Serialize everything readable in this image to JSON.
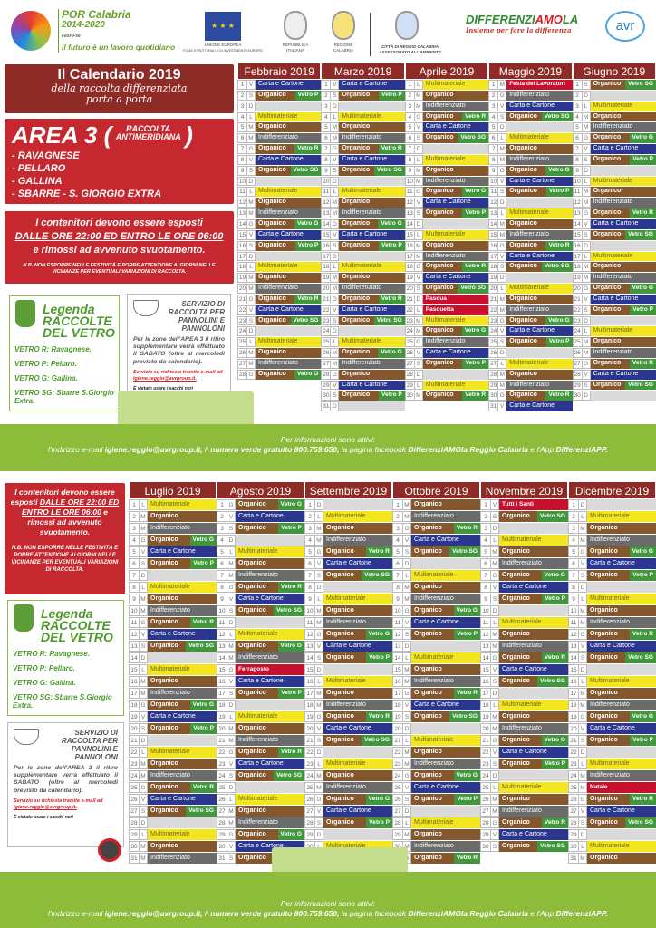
{
  "header": {
    "por_title": "POR Calabria",
    "por_years": "2014-2020",
    "por_fund": "Fesr-Fse",
    "por_motto": "il futuro è un lavoro quotidiano",
    "eu_label": "UNIONE EUROPEA",
    "eu_sub": "FONDI STRUTTURALI E DI INVESTIMENTO EUROPEI",
    "rep_label": "REPUBBLICA ITALIANA",
    "reg_label": "REGIONE CALABRIA",
    "city_label": "CITTÀ DI REGGIO CALABRIA",
    "city_sub": "ASSESSORATO ALL'AMBIENTE",
    "diff_a": "DIFFERENZI",
    "diff_b": "AMO",
    "diff_c": "LA",
    "diff_sub": "Insieme per fare la differenza",
    "avr": "avr"
  },
  "intro": {
    "title": "Il Calendario 2019",
    "subtitle1": "della raccolta differenziata",
    "subtitle2": "porta a porta"
  },
  "area": {
    "name": "AREA 3 (",
    "type1": "RACCOLTA",
    "type2": "ANTIMERIDIANA",
    "close": ")",
    "zones": [
      "- RAVAGNESE",
      "- PELLARO",
      "- GALLINA",
      "- SBARRE - S. GIORGIO EXTRA"
    ]
  },
  "notice": {
    "l1": "I contenitori devono essere esposti",
    "l2": "DALLE ORE 22:00 ED ENTRO LE ORE 06:00",
    "l3": "e rimossi ad avvenuto svuotamento.",
    "nb": "N.B. NON ESPORRE NELLE FESTIVITÀ E PORRE ATTENZIONE AI GIORNI NELLE VICINANZE PER EVENTUALI VARIAZIONI DI RACCOLTA."
  },
  "legend": {
    "h1": "Legenda",
    "h2": "RACCOLTE",
    "h3": "DEL VETRO",
    "items": [
      "VETRO R: Ravagnese.",
      "VETRO P: Pellaro.",
      "VETRO G: Gallina.",
      "VETRO SG: Sbarre S.Giorgio Extra."
    ]
  },
  "pannolini": {
    "title": "SERVIZIO DI RACCOLTA PER PANNOLINI E PANNOLONI",
    "text": "Per le zone dell'AREA 3 il ritiro supplementare verrà effettuato il SABATO (oltre al mercoledì previsto da calendario).",
    "req": "Servizio su richiesta tramite e-mail ad",
    "email": "igiene.reggio@avrgroup.it.",
    "no_bags": "È vietato usare i sacchi neri"
  },
  "info": {
    "l1": "Per informazioni sono attivi:",
    "p1": "l'indirizzo e-mail ",
    "email": "igiene.reggio@avrgroup.it,",
    "p2": " il ",
    "phone": "numero verde gratuito 800.759.650,",
    "p3": " la pagina facebook ",
    "fb": "DifferenziAMOla Reggio Calabria",
    "p4": " e l'App ",
    "app": "DifferenziAPP."
  },
  "types": {
    "L": "Multimateriale",
    "O": "Organico",
    "I": "Indifferenziato",
    "C": "Carta e Cartone"
  },
  "vetro": {
    "P": "Vetro P",
    "R": "Vetro R",
    "G": "Vetro G",
    "SG": "Vetro SG"
  },
  "colors": {
    "multimateriale": "#f4e61e",
    "organico": "#85572d",
    "indifferenziato": "#6b6b6b",
    "carta": "#2b368e",
    "vetro": "#41973b",
    "festivo": "#c8102e",
    "header": "#8f2b27",
    "band": "#8dbb3a"
  },
  "months_top": [
    {
      "name": "Febbraio 2019",
      "wd": "VSDLMMGVSDLMMGVSDLMMGVSDLMMG",
      "days": "C,O P,D,L,O,I,O R,C,O SG,D,L,O,I,O G,C,O P,D,L,O,I,O R,C,O SG,D,L,O,I,O G"
    },
    {
      "name": "Marzo 2019",
      "wd": "VSDLMMGVSDLMMGVSDLMMGVSDLMMGVSD",
      "days": "C,O P,D,L,O,I,O R,C,O SG,D,L,O,I,O G,C,O P,D,L,O,I,O R,C,O SG,D,L,O G,I,O,C,O P,D"
    },
    {
      "name": "Aprile 2019",
      "wd": "LMMGVSDLMMGVSDLMMGVSDLMMGVSDLM",
      "days": "L,O,I,O R,C,O SG,D,L,O,I,O G,C,O P,D,L,O,I,O R,C,O SG,H:Pasqua,H:Pasquetta,L,O G,I,C,O P,D,L,O R"
    },
    {
      "name": "Maggio 2019",
      "wd": "MGVSDLMMGVSDLMMGVSDLMMGVSDLMMGV",
      "days": "H:Festa dei Lavoratori,I,C,O SG,D,L,O,I,O G,C,O P,D,L,O,I,O R,C,O SG,D,L,O,I,O G,C,O P,D,L,O,I,O R,C"
    },
    {
      "name": "Giugno 2019",
      "wd": "SDLMMGVSDLMMGVSDLMMGVSDLMMGVSD",
      "days": "O SG,D,L,O,I,O G,C,O P,D,L,O,I,O R,C,O SG,D,L,O,I,O G,C,O P,D,L,O,I,O R,C,O SG,D"
    }
  ],
  "months_bottom": [
    {
      "name": "Luglio 2019",
      "wd": "LMMGVSDLMMGVSDLMMGVSDLMMGVSDLMM",
      "days": "L,O,I,O G,C,O P,D,L,O,I,O R,C,O SG,D,L,O,I,O G,C,O P,D,L,O,I,O R,C,O SG,D,L,O,I"
    },
    {
      "name": "Agosto 2019",
      "wd": "GVSDLMMGVSDLMMGVSDLMMGVSDLMMGVS",
      "days": "O G,C,O P,D,L,O,I,O R,C,O SG,D,L,O G,I,H:Ferragosto,C,O P,D,L,O,I,O R,C,O SG,D,L,O,I,O G,C,O P"
    },
    {
      "name": "Settembre 2019",
      "wd": "DLMMGVSDLMMGVSDLMMGVSDLMMGVSDL",
      "days": "D,L,O,I,O R,C,O SG,D,L,O,I,O G,C,O P,D,L,O,I,O R,C,O SG,D,L,O,I,O G,C,O P,D,L"
    },
    {
      "name": "Ottobre 2019",
      "wd": "MMGVSDLMMGVSDLMMGVSDLMMGVSDLMMG",
      "days": "O,I,O R,C,O SG,D,L,O,I,O G,C,O P,D,L,O,I,O R,C,O SG,D,L,O,I,O G,C,O P,D,L,O,I,O R"
    },
    {
      "name": "Novembre 2019",
      "wd": "VSDLMMGVSDLMMGVSDLMMGVSDLMMGVS",
      "days": "H:Tutti i Santi,O SG,D,L,O,I,O G,C,O P,D,L,O,I,O R,C,O SG,D,L,O,I,O G,C,O P,D,L,O,I,O R,C,O SG"
    },
    {
      "name": "Dicembre 2019",
      "wd": "DLMMGVSDLMMGVSDLMMGVSDLMMGVSDLM",
      "days": "D,L,O,I,O G,C,O P,D,L,O,I,O R,C,O SG,D,L,O,I,O G,C,O P,D,L,I,H:Natale,O R,C,O SG,D,L,O"
    }
  ]
}
